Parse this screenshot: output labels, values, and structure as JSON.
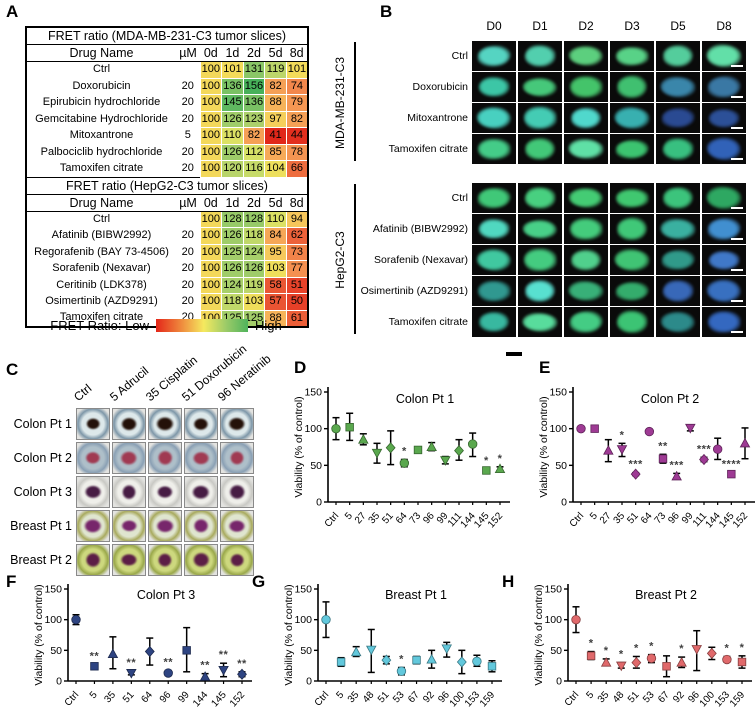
{
  "panels": {
    "a": "A",
    "b": "B",
    "c": "C",
    "d": "D",
    "e": "E",
    "f": "F",
    "g": "G",
    "h": "H"
  },
  "fret_legend": {
    "label": "FRET Ratio: Low",
    "high_label": "High",
    "gradient": [
      "#e42619",
      "#ef8c3e",
      "#f5e95f",
      "#9ccb68",
      "#4fb35c"
    ]
  },
  "heatmap_stops": [
    [
      40,
      "#e02418"
    ],
    [
      55,
      "#e94e30"
    ],
    [
      68,
      "#ef7342"
    ],
    [
      80,
      "#f59a55"
    ],
    [
      92,
      "#f7c05b"
    ],
    [
      102,
      "#f2de5a"
    ],
    [
      112,
      "#d7e267"
    ],
    [
      122,
      "#b0d16b"
    ],
    [
      132,
      "#86c566"
    ],
    [
      146,
      "#5cb860"
    ],
    [
      160,
      "#3fae57"
    ]
  ],
  "panel_b": {
    "day_headers": [
      "D0",
      "D1",
      "D2",
      "D3",
      "D5",
      "D8"
    ],
    "groups": [
      {
        "name": "MDA-MB-231-C3",
        "rows": [
          {
            "label": "Ctrl",
            "colors": [
              "#55d4c2",
              "#52cfae",
              "#5ccf7e",
              "#58d287",
              "#54cd9c",
              "#62dfa8"
            ]
          },
          {
            "label": "Doxorubicin",
            "colors": [
              "#3cc6a6",
              "#46c87a",
              "#44c46a",
              "#40c070",
              "#3a86aa",
              "#3a78a4"
            ]
          },
          {
            "label": "Mitoxantrone",
            "colors": [
              "#48d0c0",
              "#44ccb4",
              "#50d8cc",
              "#38b0b0",
              "#2a4a92",
              "#2c5098"
            ]
          },
          {
            "label": "Tamoxifen citrate",
            "colors": [
              "#44cc88",
              "#42c878",
              "#5fe0a6",
              "#3cc470",
              "#38c080",
              "#3162b8"
            ]
          }
        ]
      },
      {
        "name": "HepG2-C3",
        "rows": [
          {
            "label": "Ctrl",
            "colors": [
              "#40c878",
              "#48d080",
              "#44cc74",
              "#40c870",
              "#3cc47c",
              "#2ea862"
            ]
          },
          {
            "label": "Afatinib (BIBW2992)",
            "colors": [
              "#50d8c0",
              "#48d088",
              "#44cc7c",
              "#40c878",
              "#3ab0a0",
              "#418fd0"
            ]
          },
          {
            "label": "Sorafenib (Nexavar)",
            "colors": [
              "#40c8a0",
              "#44cc80",
              "#50d08c",
              "#40c474",
              "#309a8a",
              "#4078c8"
            ]
          },
          {
            "label": "Osimertinib (AZD9291)",
            "colors": [
              "#309890",
              "#58e0d0",
              "#38b078",
              "#34ac6c",
              "#3868b8",
              "#3870c0"
            ]
          },
          {
            "label": "Tamoxifen citrate",
            "colors": [
              "#38b8a0",
              "#58dc9c",
              "#44cc84",
              "#3cc474",
              "#2c8a8a",
              "#3468c0"
            ]
          }
        ]
      }
    ]
  },
  "panel_c": {
    "col_headers": [
      "Ctrl",
      "5 Adrucil",
      "35 Cisplatin",
      "51 Doxorubicin",
      "96 Neratinib"
    ],
    "rows": [
      {
        "label": "Colon Pt 1",
        "rim": "#7e97a8",
        "well": "#dde8ea",
        "tissue": "#241109"
      },
      {
        "label": "Colon Pt 2",
        "rim": "#8aa0b4",
        "well": "#aebfc9",
        "tissue": "#a03a52"
      },
      {
        "label": "Colon Pt 3",
        "rim": "#c9c9c4",
        "well": "#efefea",
        "tissue": "#471c44"
      },
      {
        "label": "Breast Pt 1",
        "rim": "#a8aa5e",
        "well": "#dfe5cf",
        "tissue": "#77266b"
      },
      {
        "label": "Breast Pt 2",
        "rim": "#9aa84a",
        "well": "#cdd87e",
        "tissue": "#5c1e46"
      }
    ]
  },
  "chart_data": [
    {
      "type": "table",
      "panel": "A",
      "title": "FRET ratio (MDA-MB-231-C3 tumor slices)",
      "columns": [
        "Drug Name",
        "µM",
        "0d",
        "1d",
        "2d",
        "5d",
        "8d"
      ],
      "rows": [
        {
          "drug": "Ctrl",
          "um": "",
          "values": [
            100,
            101,
            131,
            119,
            101
          ]
        },
        {
          "drug": "Doxorubicin",
          "um": "20",
          "values": [
            100,
            136,
            156,
            82,
            74
          ]
        },
        {
          "drug": "Epirubicin hydrochloride",
          "um": "20",
          "values": [
            100,
            145,
            136,
            88,
            79
          ]
        },
        {
          "drug": "Gemcitabine Hydrochloride",
          "um": "20",
          "values": [
            100,
            126,
            123,
            97,
            82
          ]
        },
        {
          "drug": "Mitoxantrone",
          "um": "5",
          "values": [
            100,
            110,
            82,
            41,
            44
          ]
        },
        {
          "drug": "Palbociclib hydrochloride",
          "um": "20",
          "values": [
            100,
            126,
            112,
            85,
            78
          ]
        },
        {
          "drug": "Tamoxifen citrate",
          "um": "20",
          "values": [
            100,
            120,
            116,
            104,
            66
          ]
        }
      ]
    },
    {
      "type": "table",
      "panel": "A",
      "title": "FRET ratio (HepG2-C3 tumor slices)",
      "columns": [
        "Drug Name",
        "µM",
        "0d",
        "1d",
        "2d",
        "5d",
        "8d"
      ],
      "rows": [
        {
          "drug": "Ctrl",
          "um": "",
          "values": [
            100,
            128,
            128,
            110,
            94
          ]
        },
        {
          "drug": "Afatinib (BIBW2992)",
          "um": "20",
          "values": [
            100,
            126,
            118,
            84,
            62
          ]
        },
        {
          "drug": "Regorafenib (BAY 73-4506)",
          "um": "20",
          "values": [
            100,
            125,
            124,
            95,
            73
          ]
        },
        {
          "drug": "Sorafenib (Nexavar)",
          "um": "20",
          "values": [
            100,
            126,
            126,
            103,
            77
          ]
        },
        {
          "drug": "Ceritinib (LDK378)",
          "um": "20",
          "values": [
            100,
            124,
            119,
            58,
            51
          ]
        },
        {
          "drug": "Osimertinib (AZD9291)",
          "um": "20",
          "values": [
            100,
            118,
            103,
            57,
            50
          ]
        },
        {
          "drug": "Tamoxifen citrate",
          "um": "20",
          "values": [
            100,
            125,
            125,
            88,
            61
          ]
        }
      ]
    },
    {
      "type": "scatter",
      "panel": "D",
      "title": "Colon Pt 1",
      "ylabel": "Viability (% of control)",
      "ylim": [
        0,
        150
      ],
      "yticks": [
        0,
        50,
        100,
        150
      ],
      "color": "#5aa84e",
      "categories": [
        "Ctrl",
        "5",
        "27",
        "35",
        "51",
        "64",
        "73",
        "96",
        "99",
        "111",
        "144",
        "145",
        "152"
      ],
      "values": [
        100,
        102,
        85,
        67,
        74,
        53,
        71,
        75,
        57,
        70,
        79,
        43,
        45
      ],
      "err_low": [
        85,
        84,
        78,
        53,
        51,
        48,
        68,
        70,
        52,
        57,
        62,
        41,
        42
      ],
      "err_high": [
        115,
        121,
        93,
        80,
        97,
        58,
        74,
        81,
        62,
        85,
        94,
        45,
        48
      ],
      "sig": [
        "",
        "",
        "",
        "",
        "",
        "*",
        "",
        "",
        "",
        "",
        "",
        "*",
        "*"
      ]
    },
    {
      "type": "scatter",
      "panel": "E",
      "title": "Colon Pt 2",
      "ylabel": "Viability (% of control)",
      "ylim": [
        0,
        150
      ],
      "yticks": [
        0,
        50,
        100,
        150
      ],
      "color": "#9e3a94",
      "categories": [
        "Ctrl",
        "5",
        "27",
        "35",
        "51",
        "64",
        "73",
        "96",
        "99",
        "111",
        "144",
        "145",
        "152"
      ],
      "values": [
        100,
        100,
        70,
        72,
        38,
        96,
        59,
        35,
        101,
        58,
        72,
        38,
        80
      ],
      "err_low": [
        99,
        98,
        55,
        62,
        36,
        96,
        53,
        31,
        97,
        55,
        58,
        36,
        59
      ],
      "err_high": [
        101,
        102,
        85,
        80,
        40,
        96,
        65,
        39,
        104,
        61,
        87,
        40,
        101
      ],
      "sig": [
        "",
        "",
        "",
        "*",
        "***",
        "",
        "**",
        "***",
        "",
        "***",
        "",
        "****",
        ""
      ]
    },
    {
      "type": "scatter",
      "panel": "F",
      "title": "Colon Pt 3",
      "ylabel": "Viability (% of control)",
      "ylim": [
        0,
        150
      ],
      "yticks": [
        0,
        50,
        100,
        150
      ],
      "color": "#2e4482",
      "categories": [
        "Ctrl",
        "5",
        "35",
        "51",
        "64",
        "96",
        "99",
        "144",
        "145",
        "152"
      ],
      "values": [
        100,
        24,
        44,
        13,
        48,
        13,
        50,
        7,
        18,
        11
      ],
      "err_low": [
        92,
        21,
        20,
        10,
        26,
        9,
        15,
        2,
        7,
        7
      ],
      "err_high": [
        108,
        27,
        72,
        16,
        70,
        17,
        87,
        12,
        29,
        15
      ],
      "sig": [
        "",
        "**",
        "",
        "**",
        "",
        "**",
        "",
        "**",
        "**",
        "**"
      ]
    },
    {
      "type": "scatter",
      "panel": "G",
      "title": "Breast Pt 1",
      "ylabel": "Viability (% of control)",
      "ylim": [
        0,
        150
      ],
      "yticks": [
        0,
        50,
        100,
        150
      ],
      "color": "#62c8dc",
      "categories": [
        "Ctrl",
        "5",
        "35",
        "48",
        "51",
        "53",
        "67",
        "92",
        "96",
        "100",
        "153",
        "159"
      ],
      "values": [
        100,
        31,
        47,
        51,
        34,
        16,
        34,
        35,
        53,
        31,
        32,
        24
      ],
      "err_low": [
        71,
        24,
        40,
        14,
        28,
        10,
        28,
        21,
        39,
        12,
        24,
        15
      ],
      "err_high": [
        129,
        38,
        56,
        84,
        40,
        22,
        40,
        50,
        63,
        50,
        42,
        33
      ],
      "sig": [
        "",
        "",
        "",
        "",
        "",
        "*",
        "",
        "",
        "",
        "",
        "",
        ""
      ]
    },
    {
      "type": "scatter",
      "panel": "H",
      "title": "Breast Pt 2",
      "ylabel": "Viability (% of control)",
      "ylim": [
        0,
        150
      ],
      "yticks": [
        0,
        50,
        100,
        150
      ],
      "color": "#e0696b",
      "categories": [
        "Ctrl",
        "5",
        "35",
        "48",
        "51",
        "53",
        "67",
        "92",
        "96",
        "100",
        "153",
        "159"
      ],
      "values": [
        100,
        41,
        30,
        25,
        30,
        37,
        24,
        30,
        52,
        45,
        35,
        31
      ],
      "err_low": [
        79,
        35,
        25,
        21,
        21,
        30,
        7,
        22,
        17,
        35,
        31,
        21
      ],
      "err_high": [
        121,
        48,
        36,
        30,
        40,
        43,
        41,
        39,
        82,
        55,
        40,
        41
      ],
      "sig": [
        "",
        "*",
        "*",
        "*",
        "*",
        "*",
        "",
        "*",
        "",
        "",
        "*",
        "*"
      ]
    }
  ]
}
